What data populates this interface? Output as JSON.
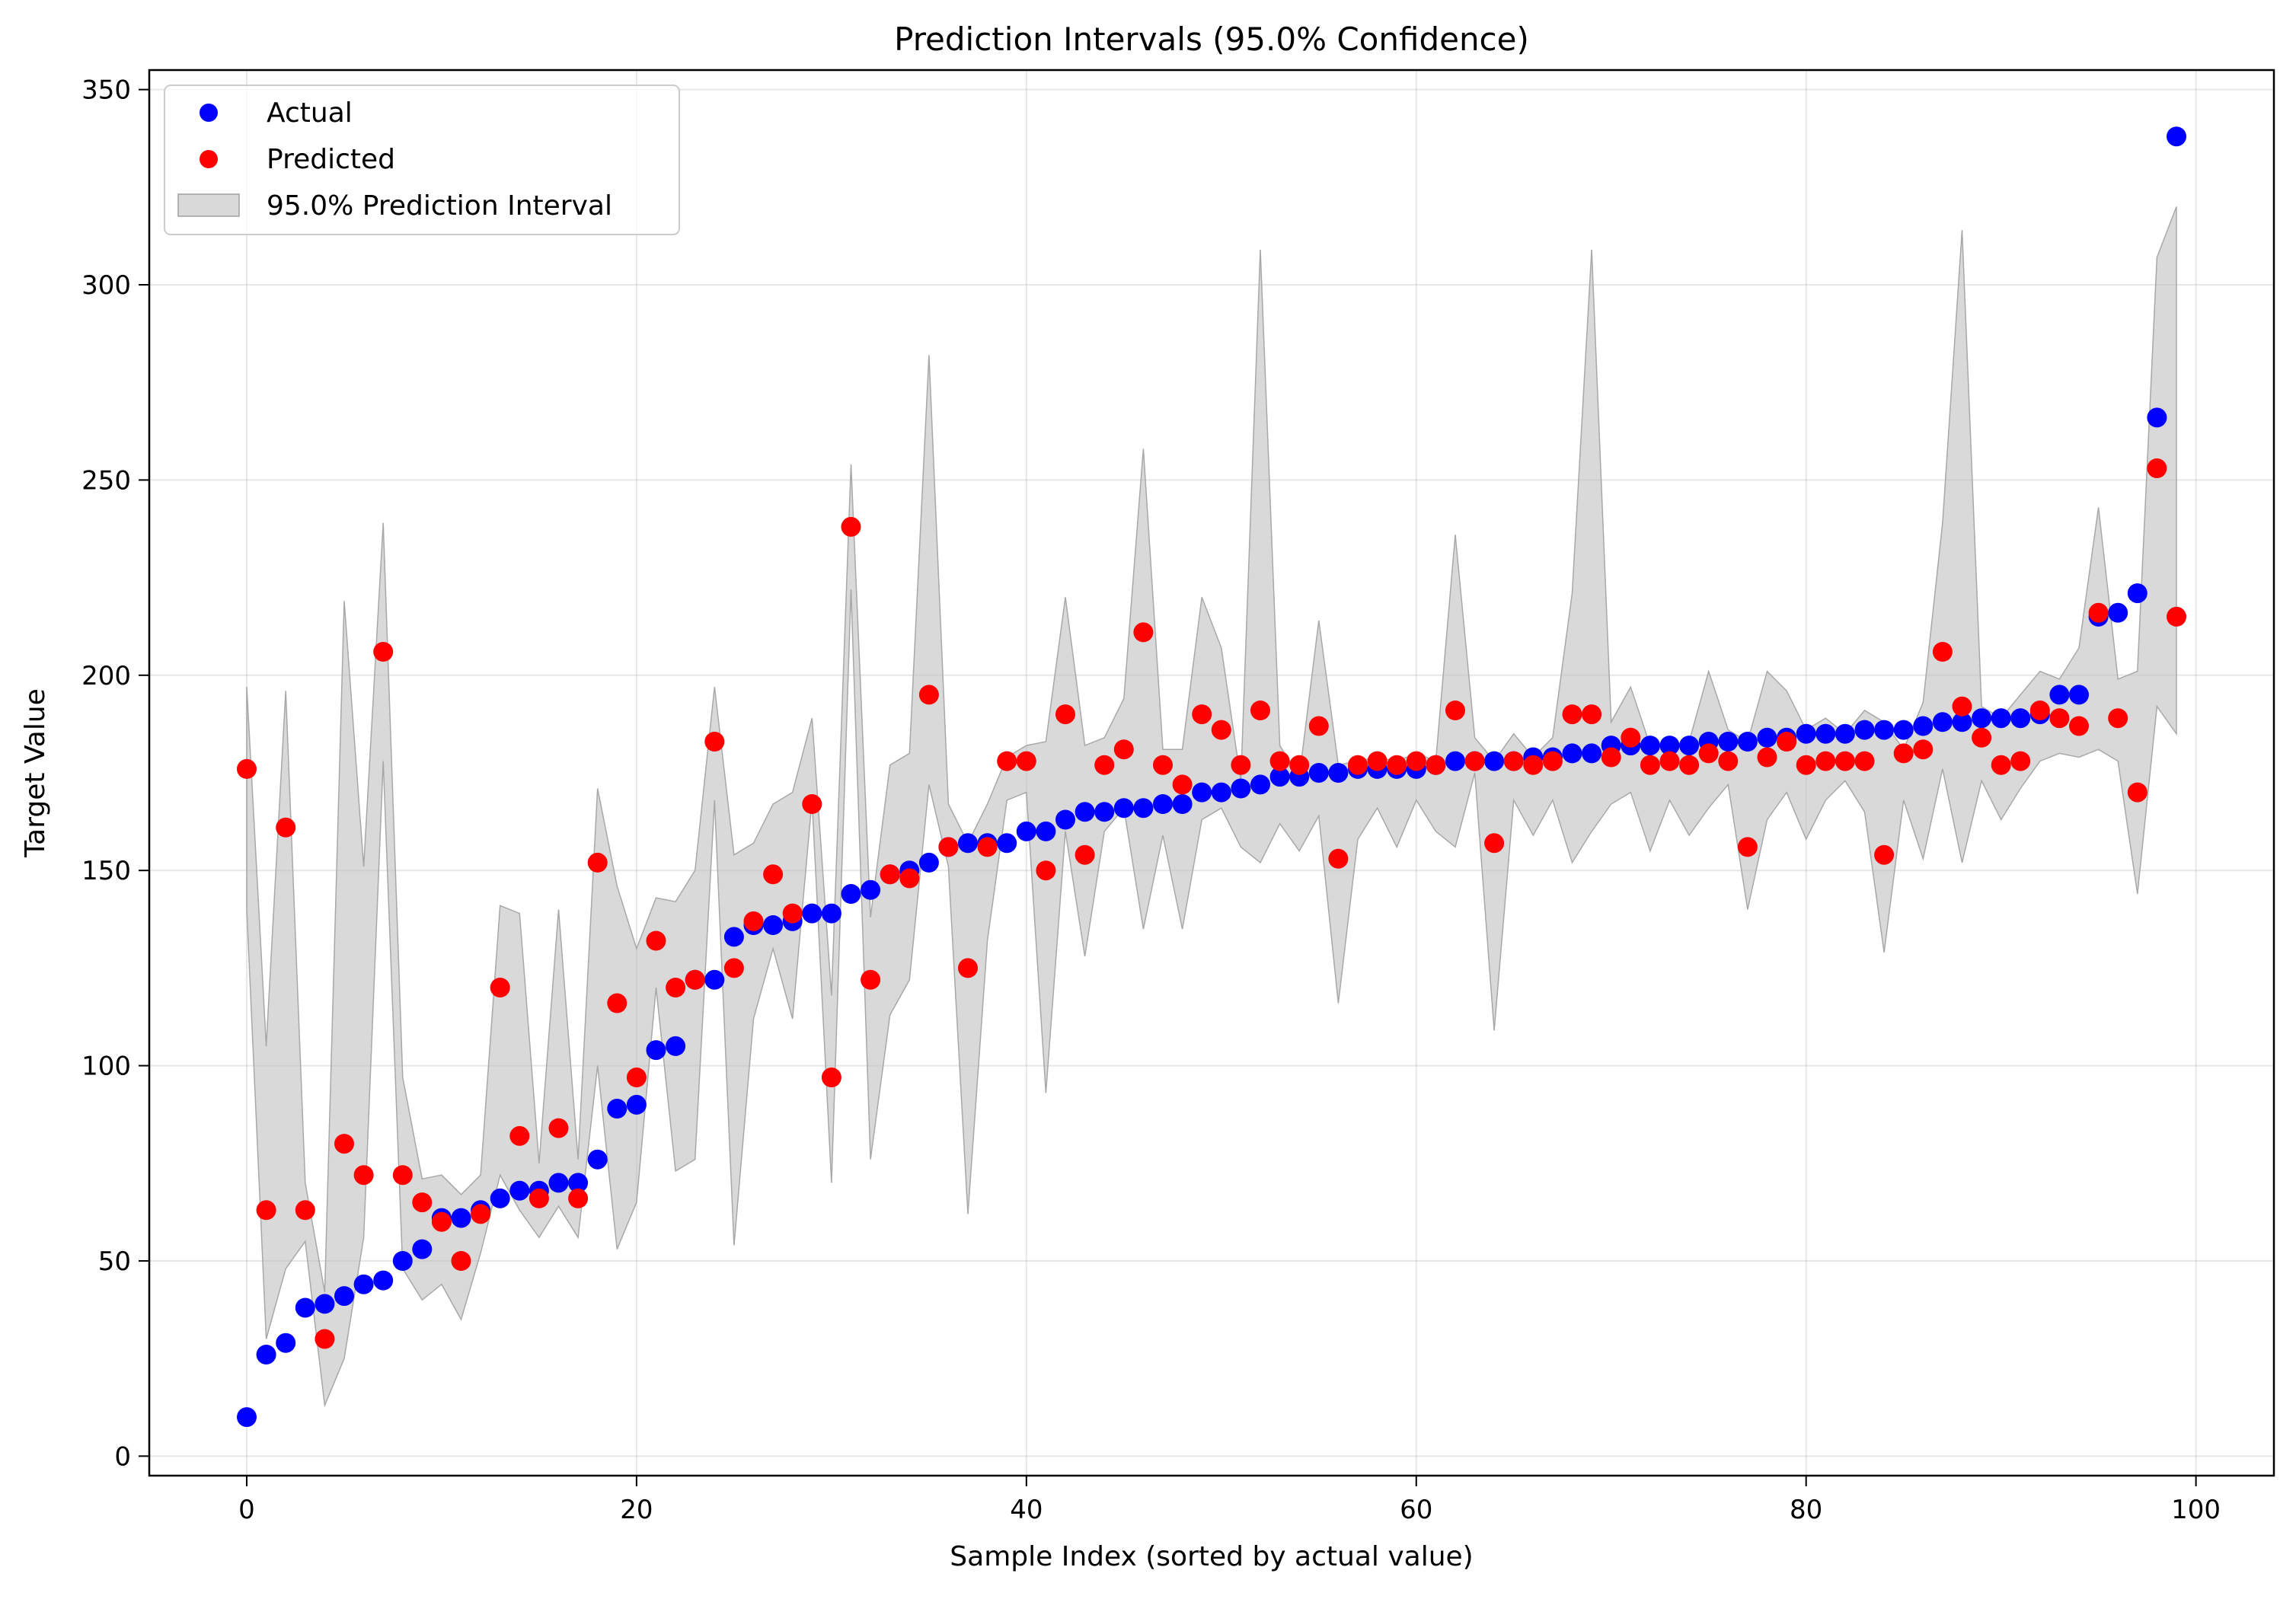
{
  "chart_data": {
    "type": "scatter",
    "title": "Prediction Intervals (95.0% Confidence)",
    "xlabel": "Sample Index (sorted by actual value)",
    "ylabel": "Target Value",
    "xlim": [
      -5,
      104
    ],
    "ylim": [
      -5,
      355
    ],
    "xticks": [
      0,
      20,
      40,
      60,
      80,
      100
    ],
    "yticks": [
      0,
      50,
      100,
      150,
      200,
      250,
      300,
      350
    ],
    "grid": true,
    "legend_position": "top-left",
    "series": [
      {
        "name": "Actual",
        "kind": "points",
        "color": "#0000ff",
        "x": [
          0,
          1,
          2,
          3,
          4,
          5,
          6,
          7,
          8,
          9,
          10,
          11,
          12,
          13,
          14,
          15,
          16,
          17,
          18,
          19,
          20,
          21,
          22,
          23,
          24,
          25,
          26,
          27,
          28,
          29,
          30,
          31,
          32,
          33,
          34,
          35,
          36,
          37,
          38,
          39,
          40,
          41,
          42,
          43,
          44,
          45,
          46,
          47,
          48,
          49,
          50,
          51,
          52,
          53,
          54,
          55,
          56,
          57,
          58,
          59,
          60,
          61,
          62,
          63,
          64,
          65,
          66,
          67,
          68,
          69,
          70,
          71,
          72,
          73,
          74,
          75,
          76,
          77,
          78,
          79,
          80,
          81,
          82,
          83,
          84,
          85,
          86,
          87,
          88,
          89,
          90,
          91,
          92,
          93,
          94,
          95,
          96,
          97,
          98,
          99
        ],
        "y": [
          10,
          26,
          29,
          38,
          39,
          41,
          44,
          45,
          50,
          53,
          61,
          61,
          63,
          66,
          68,
          68,
          70,
          70,
          76,
          89,
          90,
          104,
          105,
          122,
          122,
          133,
          136,
          136,
          137,
          139,
          139,
          144,
          145,
          149,
          150,
          152,
          156,
          157,
          157,
          157,
          160,
          160,
          163,
          165,
          165,
          166,
          166,
          167,
          167,
          170,
          170,
          171,
          172,
          174,
          174,
          175,
          175,
          176,
          176,
          176,
          176,
          177,
          178,
          178,
          178,
          178,
          179,
          179,
          180,
          180,
          182,
          182,
          182,
          182,
          182,
          183,
          183,
          183,
          184,
          184,
          185,
          185,
          185,
          186,
          186,
          186,
          187,
          188,
          188,
          189,
          189,
          189,
          190,
          195,
          195,
          215,
          216,
          221,
          266,
          338
        ]
      },
      {
        "name": "Predicted",
        "kind": "points",
        "color": "#ff0000",
        "x": [
          0,
          1,
          2,
          3,
          4,
          5,
          6,
          7,
          8,
          9,
          10,
          11,
          12,
          13,
          14,
          15,
          16,
          17,
          18,
          19,
          20,
          21,
          22,
          23,
          24,
          25,
          26,
          27,
          28,
          29,
          30,
          31,
          32,
          33,
          34,
          35,
          36,
          37,
          38,
          39,
          40,
          41,
          42,
          43,
          44,
          45,
          46,
          47,
          48,
          49,
          50,
          51,
          52,
          53,
          54,
          55,
          56,
          57,
          58,
          59,
          60,
          61,
          62,
          63,
          64,
          65,
          66,
          67,
          68,
          69,
          70,
          71,
          72,
          73,
          74,
          75,
          76,
          77,
          78,
          79,
          80,
          81,
          82,
          83,
          84,
          85,
          86,
          87,
          88,
          89,
          90,
          91,
          92,
          93,
          94,
          95,
          96,
          97,
          98,
          99
        ],
        "y": [
          176,
          63,
          161,
          63,
          30,
          80,
          72,
          206,
          72,
          65,
          60,
          50,
          62,
          120,
          82,
          66,
          84,
          66,
          152,
          116,
          97,
          132,
          120,
          122,
          183,
          125,
          137,
          149,
          139,
          167,
          97,
          238,
          122,
          149,
          148,
          195,
          156,
          125,
          156,
          178,
          178,
          150,
          190,
          154,
          177,
          181,
          211,
          177,
          172,
          190,
          186,
          177,
          191,
          178,
          177,
          187,
          153,
          177,
          178,
          177,
          178,
          177,
          191,
          178,
          157,
          178,
          177,
          178,
          190,
          190,
          179,
          184,
          177,
          178,
          177,
          180,
          178,
          156,
          179,
          183,
          177,
          178,
          178,
          178,
          154,
          180,
          181,
          206,
          192,
          184,
          177,
          178,
          191,
          189,
          187,
          216,
          189,
          170,
          253,
          215
        ]
      },
      {
        "name": "95.0% Prediction Interval",
        "kind": "band",
        "color": "#bfbfbf",
        "x": [
          0,
          1,
          2,
          3,
          4,
          5,
          6,
          7,
          8,
          9,
          10,
          11,
          12,
          13,
          14,
          15,
          16,
          17,
          18,
          19,
          20,
          21,
          22,
          23,
          24,
          25,
          26,
          27,
          28,
          29,
          30,
          31,
          32,
          33,
          34,
          35,
          36,
          37,
          38,
          39,
          40,
          41,
          42,
          43,
          44,
          45,
          46,
          47,
          48,
          49,
          50,
          51,
          52,
          53,
          54,
          55,
          56,
          57,
          58,
          59,
          60,
          61,
          62,
          63,
          64,
          65,
          66,
          67,
          68,
          69,
          70,
          71,
          72,
          73,
          74,
          75,
          76,
          77,
          78,
          79,
          80,
          81,
          82,
          83,
          84,
          85,
          86,
          87,
          88,
          89,
          90,
          91,
          92,
          93,
          94,
          95,
          96,
          97,
          98,
          99
        ],
        "lower": [
          140,
          30,
          48,
          55,
          13,
          25,
          56,
          178,
          48,
          40,
          44,
          35,
          52,
          72,
          63,
          56,
          64,
          56,
          100,
          53,
          65,
          120,
          73,
          76,
          168,
          54,
          112,
          130,
          112,
          168,
          70,
          222,
          76,
          113,
          122,
          172,
          151,
          62,
          132,
          168,
          170,
          93,
          160,
          128,
          160,
          166,
          135,
          159,
          135,
          163,
          166,
          156,
          152,
          162,
          155,
          164,
          116,
          158,
          166,
          156,
          168,
          160,
          156,
          175,
          109,
          168,
          159,
          168,
          152,
          160,
          167,
          170,
          155,
          168,
          159,
          166,
          172,
          140,
          163,
          170,
          158,
          168,
          173,
          165,
          129,
          168,
          153,
          176,
          152,
          173,
          163,
          171,
          178,
          180,
          179,
          181,
          178,
          144,
          192,
          185
        ],
        "upper": [
          197,
          105,
          196,
          70,
          42,
          219,
          151,
          239,
          97,
          71,
          72,
          67,
          72,
          141,
          139,
          75,
          140,
          76,
          171,
          146,
          130,
          143,
          142,
          150,
          197,
          154,
          157,
          167,
          170,
          189,
          118,
          254,
          138,
          177,
          180,
          282,
          167,
          157,
          167,
          179,
          182,
          183,
          220,
          182,
          184,
          194,
          258,
          181,
          181,
          220,
          207,
          173,
          309,
          182,
          174,
          214,
          177,
          178,
          179,
          178,
          180,
          178,
          236,
          184,
          178,
          185,
          179,
          184,
          221,
          309,
          188,
          197,
          182,
          182,
          183,
          201,
          186,
          183,
          201,
          196,
          186,
          189,
          185,
          191,
          188,
          181,
          193,
          239,
          314,
          192,
          189,
          195,
          201,
          199,
          207,
          243,
          199,
          201,
          307,
          320
        ]
      }
    ]
  }
}
